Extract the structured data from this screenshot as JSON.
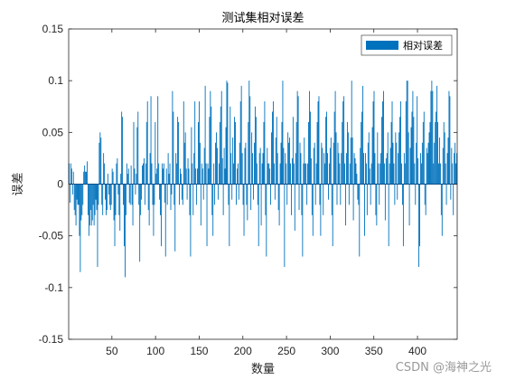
{
  "chart_data": {
    "type": "bar",
    "title": "测试集相对误差",
    "xlabel": "数量",
    "ylabel": "误差",
    "xlim": [
      1,
      445
    ],
    "ylim": [
      -0.15,
      0.15
    ],
    "xticks": [
      50,
      100,
      150,
      200,
      250,
      300,
      350,
      400
    ],
    "yticks": [
      -0.15,
      -0.1,
      -0.05,
      0,
      0.05,
      0.1,
      0.15
    ],
    "ytick_labels": [
      "-0.15",
      "-0.1",
      "-0.05",
      "0",
      "0.05",
      "0.1",
      "0.15"
    ],
    "grid": false,
    "legend_position": "top-right",
    "bar_color": "#0072BD",
    "series": [
      {
        "name": "相对误差",
        "values": [
          0.02,
          -0.018,
          0.02,
          0.015,
          -0.01,
          0.012,
          -0.025,
          -0.03,
          -0.04,
          -0.015,
          -0.02,
          -0.02,
          -0.05,
          -0.085,
          -0.035,
          -0.03,
          -0.02,
          0.012,
          0.018,
          0.012,
          0.012,
          0.022,
          -0.03,
          -0.05,
          -0.04,
          -0.025,
          -0.04,
          -0.035,
          -0.02,
          -0.04,
          -0.03,
          -0.015,
          -0.025,
          -0.08,
          -0.02,
          0.04,
          0.05,
          0.045,
          -0.02,
          -0.03,
          0.03,
          0.02,
          -0.015,
          -0.03,
          -0.025,
          0.01,
          -0.01,
          -0.02,
          -0.025,
          -0.02,
          0.015,
          0.012,
          -0.035,
          -0.06,
          -0.03,
          0.02,
          0.025,
          -0.01,
          -0.03,
          -0.045,
          0.01,
          0.07,
          0.065,
          -0.02,
          -0.06,
          -0.09,
          -0.03,
          0.02,
          0.01,
          0.015,
          -0.018,
          -0.02,
          0.018,
          -0.02,
          -0.04,
          0.06,
          0.015,
          -0.01,
          0.01,
          0.055,
          0.07,
          -0.02,
          -0.075,
          -0.03,
          -0.015,
          0.018,
          0.02,
          0.025,
          -0.02,
          0.02,
          0.06,
          0.08,
          -0.025,
          -0.04,
          0.03,
          0.085,
          0.02,
          -0.02,
          -0.05,
          -0.02,
          0.06,
          0.01,
          0.015,
          0.085,
          0.02,
          -0.015,
          -0.03,
          -0.06,
          0.02,
          0.015,
          0.02,
          -0.018,
          -0.07,
          0.015,
          -0.02,
          0.03,
          0.01,
          0.02,
          -0.025,
          -0.01,
          0.09,
          0.07,
          -0.02,
          -0.065,
          0.03,
          0.02,
          0.065,
          0.06,
          -0.02,
          0.015,
          0.01,
          -0.015,
          -0.02,
          0.08,
          0.04,
          0.05,
          0.015,
          -0.015,
          0.025,
          0.015,
          -0.03,
          -0.07,
          0.055,
          0.02,
          -0.03,
          0.03,
          0.08,
          0.015,
          -0.02,
          0.015,
          0.06,
          0.08,
          0.04,
          -0.04,
          0.02,
          0.015,
          -0.015,
          0.035,
          0.095,
          0.02,
          -0.06,
          0.02,
          0.015,
          0.065,
          0.09,
          0.075,
          -0.03,
          -0.05,
          0.02,
          -0.02,
          0.04,
          0.05,
          0.035,
          -0.015,
          0.02,
          0.06,
          0.075,
          0.09,
          0.025,
          -0.03,
          0.035,
          0.015,
          0.055,
          0.1,
          0.098,
          -0.02,
          -0.06,
          0.075,
          0.03,
          -0.015,
          0.045,
          0.02,
          0.065,
          0.06,
          -0.02,
          0.015,
          0.02,
          -0.015,
          0.04,
          0.08,
          0.095,
          0.03,
          -0.02,
          -0.05,
          0.035,
          0.04,
          -0.02,
          -0.035,
          0.06,
          0.1,
          0.085,
          -0.025,
          0.05,
          0.03,
          -0.015,
          0.04,
          0.075,
          0.065,
          0.02,
          -0.02,
          -0.06,
          0.03,
          0.035,
          -0.04,
          0.02,
          0.03,
          0.06,
          0.08,
          -0.03,
          -0.07,
          0.035,
          0.02,
          0.02,
          0.015,
          -0.02,
          0.05,
          0.07,
          0.08,
          0.02,
          -0.015,
          0.045,
          0.065,
          0.03,
          -0.025,
          -0.04,
          0.02,
          0.04,
          0.06,
          0.1,
          0.035,
          -0.08,
          0.03,
          0.02,
          -0.02,
          0.05,
          0.04,
          0.045,
          0.02,
          -0.03,
          0.025,
          0.065,
          0.02,
          -0.045,
          0.03,
          0.06,
          0.09,
          0.085,
          -0.025,
          0.04,
          0.03,
          -0.03,
          -0.07,
          0.02,
          0.045,
          0.02,
          0.02,
          -0.02,
          0.02,
          0.06,
          0.09,
          0.07,
          0.025,
          -0.03,
          -0.05,
          0.035,
          0.04,
          -0.02,
          0.02,
          0.06,
          0.08,
          0.085,
          -0.02,
          -0.05,
          0.04,
          0.035,
          -0.03,
          0.03,
          0.02,
          0.065,
          0.07,
          0.03,
          -0.015,
          0.02,
          0.035,
          0.045,
          -0.03,
          -0.06,
          0.04,
          0.07,
          0.09,
          0.05,
          -0.02,
          0.04,
          0.03,
          0.02,
          -0.02,
          0.03,
          0.06,
          0.08,
          0.085,
          0.02,
          -0.04,
          0.03,
          0.06,
          0.05,
          -0.02,
          0.02,
          0.045,
          0.1,
          0.045,
          -0.035,
          0.03,
          0.025,
          0.02,
          0.01,
          -0.015,
          -0.02,
          -0.07,
          0.035,
          0.06,
          0.07,
          0.095,
          0.03,
          -0.05,
          0.03,
          0.02,
          -0.03,
          0.04,
          0.05,
          0.015,
          -0.02,
          0.02,
          0.055,
          0.08,
          0.09,
          0.03,
          -0.03,
          -0.04,
          0.05,
          0.02,
          -0.02,
          0.02,
          0.03,
          0.065,
          0.08,
          0.09,
          0.02,
          -0.035,
          0.025,
          0.03,
          0.05,
          -0.06,
          0.02,
          0.035,
          0.06,
          0.08,
          0.04,
          0.02,
          -0.02,
          0.05,
          0.04,
          -0.015,
          0.03,
          0.05,
          0.065,
          0.08,
          0.02,
          -0.02,
          -0.06,
          0.03,
          0.02,
          0.08,
          0.1,
          0.1,
          0.05,
          -0.04,
          0.035,
          0.055,
          0.07,
          0.09,
          0.065,
          0.02,
          -0.02,
          0.04,
          0.085,
          0.025,
          -0.08,
          -0.06,
          0.03,
          0.02,
          0.04,
          0.06,
          0.07,
          -0.02,
          -0.03,
          0.035,
          0.03,
          0.04,
          0.05,
          0.06,
          0.09,
          0.1,
          0.09,
          0.02,
          0.04,
          0.06,
          0.07,
          0.095,
          0.06,
          0.02,
          0.045,
          0.02,
          -0.03,
          -0.05,
          0.035,
          0.06,
          0.05,
          0.02,
          -0.02,
          0.03,
          0.045,
          0.09,
          0.085,
          -0.015,
          0.035,
          0.02,
          -0.03,
          0.03,
          0.04,
          0.02,
          0.03
        ]
      }
    ]
  },
  "watermark": "CSDN @海神之光"
}
